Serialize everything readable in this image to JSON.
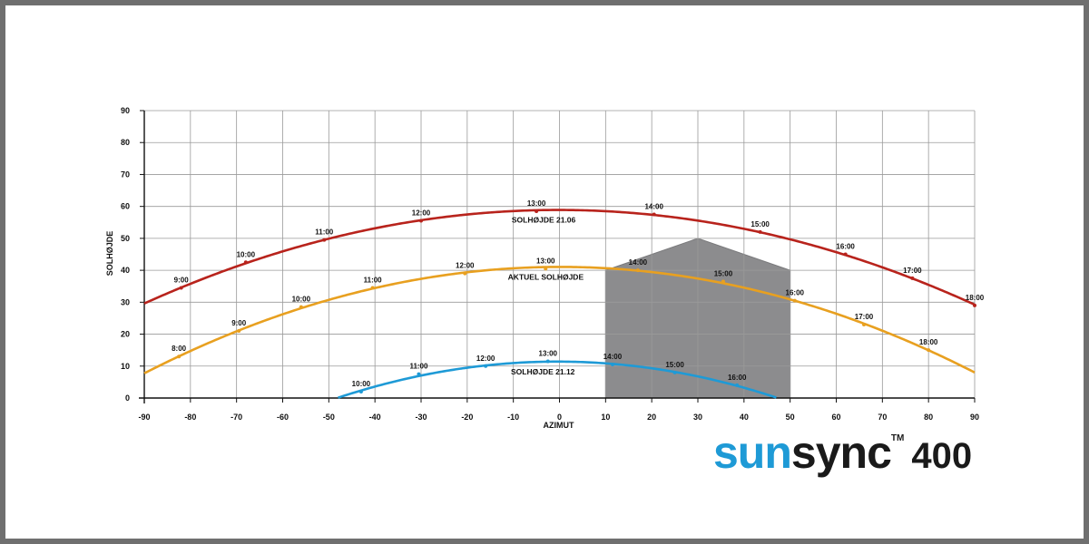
{
  "chart_data": {
    "type": "line",
    "xlabel": "AZIMUT",
    "ylabel": "SOLHØJDE",
    "xlim": [
      -90,
      90
    ],
    "ylim": [
      0,
      90
    ],
    "xticks": [
      -90,
      -80,
      -70,
      -60,
      -50,
      -40,
      -30,
      -20,
      -10,
      0,
      10,
      20,
      30,
      40,
      50,
      60,
      70,
      80,
      90
    ],
    "yticks": [
      0,
      10,
      20,
      30,
      40,
      50,
      60,
      70,
      80,
      90
    ],
    "grid": true,
    "series": [
      {
        "name": "SOLHØJDE 21.06",
        "color": "#b8231c",
        "points": [
          {
            "x": -82,
            "y": 34.5,
            "label": "9:00"
          },
          {
            "x": -68,
            "y": 42.5,
            "label": "10:00"
          },
          {
            "x": -51,
            "y": 49.5,
            "label": "11:00"
          },
          {
            "x": -30,
            "y": 55.5,
            "label": "12:00"
          },
          {
            "x": -5,
            "y": 58.5,
            "label": "13:00"
          },
          {
            "x": 20.5,
            "y": 57.5,
            "label": "14:00"
          },
          {
            "x": 43.5,
            "y": 52,
            "label": "15:00"
          },
          {
            "x": 62,
            "y": 45,
            "label": "16:00"
          },
          {
            "x": 76.5,
            "y": 37.5,
            "label": "17:00"
          },
          {
            "x": 90,
            "y": 29,
            "label": "18:00"
          }
        ]
      },
      {
        "name": "AKTUEL SOLHØJDE",
        "color": "#e8a020",
        "points": [
          {
            "x": -82.5,
            "y": 13,
            "label": "8:00"
          },
          {
            "x": -69.5,
            "y": 21,
            "label": "9:00"
          },
          {
            "x": -56,
            "y": 28.5,
            "label": "10:00"
          },
          {
            "x": -40.5,
            "y": 34.5,
            "label": "11:00"
          },
          {
            "x": -20.5,
            "y": 39,
            "label": "12:00"
          },
          {
            "x": -3,
            "y": 40.5,
            "label": "13:00"
          },
          {
            "x": 17,
            "y": 40,
            "label": "14:00"
          },
          {
            "x": 35.5,
            "y": 36.5,
            "label": "15:00"
          },
          {
            "x": 51,
            "y": 30.5,
            "label": "16:00"
          },
          {
            "x": 66,
            "y": 23,
            "label": "17:00"
          },
          {
            "x": 80,
            "y": 15,
            "label": "18:00"
          }
        ]
      },
      {
        "name": "SOLHØJDE 21.12",
        "color": "#1e9ad6",
        "points": [
          {
            "x": -43,
            "y": 2,
            "label": "10:00"
          },
          {
            "x": -30.5,
            "y": 7.5,
            "label": "11:00"
          },
          {
            "x": -16,
            "y": 10,
            "label": "12:00"
          },
          {
            "x": -2.5,
            "y": 11.5,
            "label": "13:00"
          },
          {
            "x": 11.5,
            "y": 10.5,
            "label": "14:00"
          },
          {
            "x": 25,
            "y": 8,
            "label": "15:00"
          },
          {
            "x": 38.5,
            "y": 4,
            "label": "16:00"
          }
        ]
      }
    ],
    "obstruction": {
      "color": "#8c8c8e",
      "outline": [
        [
          10,
          0
        ],
        [
          10,
          40
        ],
        [
          30,
          50
        ],
        [
          50,
          40
        ],
        [
          50,
          0
        ]
      ]
    }
  },
  "brand": {
    "sun": "sun",
    "sync": "sync",
    "tm": "TM",
    "model": "400"
  }
}
